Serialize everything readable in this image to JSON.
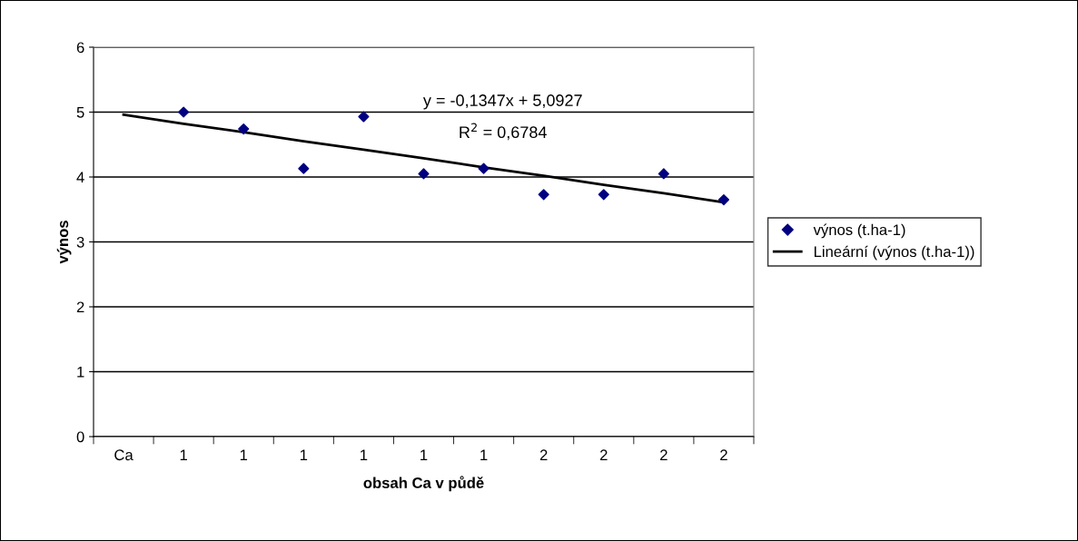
{
  "chart_data": {
    "type": "scatter",
    "xlabel": "obsah Ca v půdě",
    "ylabel": "výnos",
    "categories": [
      "Ca",
      "1",
      "1",
      "1",
      "1",
      "1",
      "1",
      "2",
      "2",
      "2",
      "2"
    ],
    "series": [
      {
        "name": "výnos (t.ha-1)",
        "marker": "diamond",
        "color": "#000080",
        "values": [
          null,
          5.0,
          4.74,
          4.13,
          4.93,
          4.05,
          4.13,
          3.73,
          3.73,
          4.05,
          3.65
        ]
      },
      {
        "name": "Lineární (výnos (t.ha-1))",
        "type": "line",
        "marker": "none",
        "line_style": "solid",
        "color": "#000000",
        "values": [
          4.96,
          4.82,
          4.69,
          4.55,
          4.42,
          4.29,
          4.15,
          4.02,
          3.88,
          3.75,
          3.61
        ]
      }
    ],
    "ylim": [
      0,
      6
    ],
    "yticks": [
      0,
      1,
      2,
      3,
      4,
      5,
      6
    ],
    "grid": "y",
    "legend": "right",
    "annotations": [
      "y = -0,1347x + 5,0927",
      "R$^{2}$ = 0,6784"
    ]
  }
}
